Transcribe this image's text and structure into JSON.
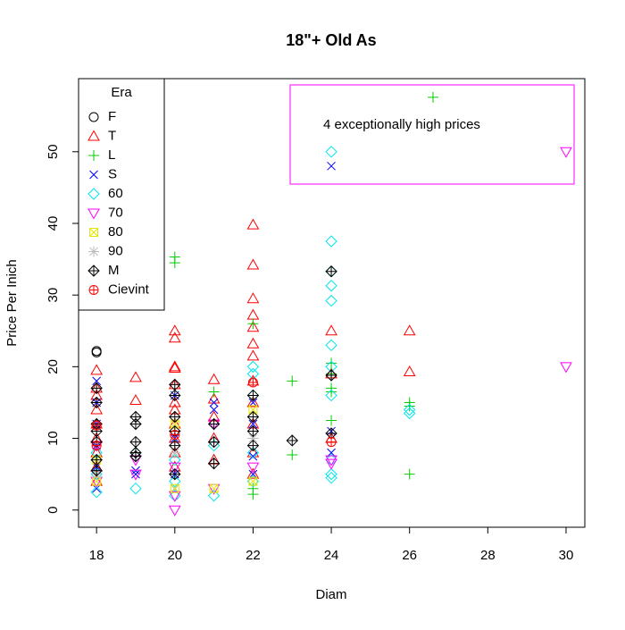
{
  "chart_data": {
    "type": "scatter",
    "title": "18\"+ Old As",
    "x_label": "Diam",
    "y_label": "Price Per Inich",
    "annotation": "4 exceptionally high prices",
    "legend_title": "Era",
    "legend": "topleft",
    "xlim": [
      17.54,
      30.48
    ],
    "ylim": [
      -2.4,
      60.2
    ],
    "xticks": [
      18,
      20,
      22,
      24,
      26,
      28,
      30
    ],
    "yticks": [
      0,
      10,
      20,
      30,
      40,
      50
    ],
    "series": [
      {
        "name": "F",
        "color": "#000000",
        "marker": "circle",
        "x": [
          18,
          18
        ],
        "y": [
          22.2,
          22
        ]
      },
      {
        "name": "T",
        "color": "#ff0000",
        "marker": "triangle-up",
        "x": [
          18,
          18,
          18,
          18,
          18,
          18,
          18,
          18,
          18,
          19,
          19,
          20,
          20,
          20,
          20,
          20,
          20,
          20,
          20,
          20,
          20,
          20,
          21,
          21,
          21,
          21,
          21,
          22,
          22,
          22,
          22,
          22,
          22,
          22,
          22,
          22,
          22,
          22,
          22,
          24,
          24,
          24,
          26,
          26
        ],
        "y": [
          19.5,
          17,
          16,
          14,
          12,
          10,
          8,
          6,
          4,
          18.5,
          15.3,
          25,
          24,
          20,
          19.8,
          17.5,
          15,
          14,
          12,
          10,
          8,
          6,
          18.2,
          15.5,
          13,
          10,
          7,
          39.8,
          34.2,
          29.5,
          27.2,
          25.5,
          23.2,
          21.5,
          18,
          15,
          12,
          8,
          5,
          25,
          19,
          10,
          25,
          19.3
        ]
      },
      {
        "name": "L",
        "color": "#00cd00",
        "marker": "plus",
        "x": [
          20,
          20,
          21,
          22,
          22,
          22,
          22,
          23,
          23,
          24,
          24,
          24,
          24,
          24,
          26,
          26,
          26,
          26.6
        ],
        "y": [
          35.3,
          34.5,
          16.5,
          26,
          2.2,
          3,
          10,
          18,
          7.7,
          20.5,
          19,
          17,
          16.5,
          12.5,
          15,
          14.5,
          5,
          57.6
        ]
      },
      {
        "name": "S",
        "color": "#0000ff",
        "marker": "cross",
        "x": [
          18,
          18,
          18,
          18,
          18,
          18,
          19,
          19,
          20,
          20,
          20,
          20,
          21,
          21,
          22,
          22,
          22,
          22,
          24,
          24,
          24
        ],
        "y": [
          18,
          15,
          12,
          9,
          6,
          3,
          5.5,
          5,
          16,
          10,
          5,
          3,
          15,
          14,
          15,
          12,
          7.5,
          5,
          48,
          8,
          11
        ]
      },
      {
        "name": "60",
        "color": "#00e5ee",
        "marker": "diamond",
        "x": [
          18,
          18,
          18,
          19,
          19,
          20,
          20,
          20,
          21,
          21,
          22,
          22,
          22,
          22,
          22,
          24,
          24,
          24,
          24,
          24,
          24,
          24,
          24,
          24,
          24,
          24,
          26,
          26
        ],
        "y": [
          2.5,
          5,
          8,
          3,
          8,
          2,
          4,
          7,
          2,
          9,
          20,
          19,
          16,
          8,
          4,
          50,
          37.5,
          33.3,
          31.3,
          29.2,
          23,
          20,
          16,
          7,
          5,
          4.5,
          14,
          13.5
        ]
      },
      {
        "name": "70",
        "color": "#ff00ff",
        "marker": "triangle-down",
        "x": [
          18,
          18,
          19,
          19,
          20,
          20,
          20,
          21,
          21,
          22,
          24,
          24,
          30,
          30
        ],
        "y": [
          4,
          9,
          5,
          7,
          0,
          2,
          6,
          3,
          12,
          6,
          7,
          6.5,
          50,
          20
        ]
      },
      {
        "name": "80",
        "color": "#e5e500",
        "marker": "square-cross",
        "x": [
          18,
          18,
          20,
          20,
          21,
          22,
          22
        ],
        "y": [
          4,
          7,
          3,
          12,
          3,
          4,
          14
        ]
      },
      {
        "name": "90",
        "color": "#bebebe",
        "marker": "asterisk",
        "x": [
          18,
          20,
          22
        ],
        "y": [
          5,
          8,
          10
        ]
      },
      {
        "name": "M",
        "color": "#000000",
        "marker": "diamond-plus",
        "x": [
          18,
          18,
          18,
          18,
          18,
          18,
          18,
          19,
          19,
          19,
          19,
          19,
          20,
          20,
          20,
          20,
          20,
          20,
          21,
          21,
          21,
          22,
          22,
          22,
          22,
          23,
          24,
          24,
          24
        ],
        "y": [
          17,
          15,
          12,
          11,
          9.5,
          7,
          5.5,
          13,
          12,
          9.5,
          8,
          7.5,
          17.5,
          16,
          13,
          11,
          9,
          5,
          12,
          9.5,
          6.5,
          16,
          13,
          11,
          9,
          9.7,
          33.3,
          18.8,
          10.7
        ]
      },
      {
        "name": "Cievint",
        "color": "#ff0000",
        "marker": "circle-plus",
        "x": [
          18,
          18,
          20,
          22,
          24
        ],
        "y": [
          11.8,
          9,
          10.5,
          17.8,
          9.5
        ]
      }
    ]
  }
}
